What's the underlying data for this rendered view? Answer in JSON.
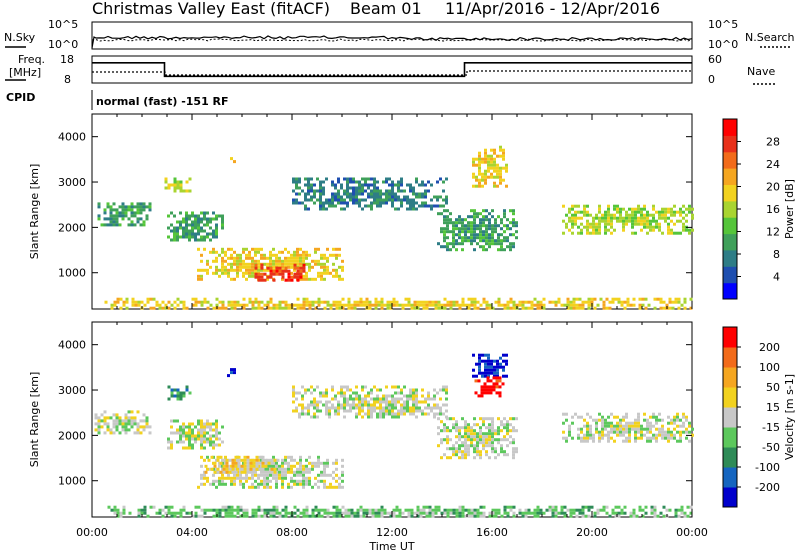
{
  "header": {
    "radar": "Christmas Valley East (fitACF)",
    "beam": "Beam 01",
    "date_range": "11/Apr/2016 - 12/Apr/2016"
  },
  "top_panels": {
    "nsky_label": "N.Sky",
    "nsearch_label": "N.Search",
    "noise_ticks": [
      "10^5",
      "10^0"
    ],
    "freq_label_1": "Freq.",
    "freq_label_2": "[MHz]",
    "freq_ticks": [
      "18",
      "8"
    ],
    "nave_label": "Nave",
    "nave_ticks": [
      "60",
      "0"
    ],
    "cpid_label": "CPID",
    "cpid_text": "normal (fast) -151 RF"
  },
  "chart_data": [
    {
      "type": "heatmap",
      "title": "",
      "xlabel": "Time UT",
      "ylabel": "Slant Range [km]",
      "xticks": [
        "00:00",
        "04:00",
        "08:00",
        "12:00",
        "16:00",
        "20:00",
        "00:00"
      ],
      "xlim": [
        0,
        24
      ],
      "ylim": [
        200,
        4500
      ],
      "yticks": [
        1000,
        2000,
        3000,
        4000
      ],
      "colorbar": {
        "label": "Power [dB]",
        "ticks": [
          4,
          8,
          12,
          16,
          20,
          24,
          28
        ],
        "colors": [
          "#0000ff",
          "#1f4fb0",
          "#2e7d86",
          "#3fa05a",
          "#55c53a",
          "#a9d430",
          "#f2d21f",
          "#f5a620",
          "#f26b1a",
          "#e8301a",
          "#ff0000"
        ]
      },
      "regions": [
        {
          "t0": 0.1,
          "t1": 2.3,
          "r0": 2050,
          "r1": 2550,
          "level": 3
        },
        {
          "t0": 2.9,
          "t1": 3.9,
          "r0": 2800,
          "r1": 3100,
          "level": 5
        },
        {
          "t0": 5.4,
          "t1": 5.7,
          "r0": 3300,
          "r1": 3550,
          "level": 6
        },
        {
          "t0": 3.0,
          "t1": 5.2,
          "r0": 1700,
          "r1": 2350,
          "level": 3
        },
        {
          "t0": 4.2,
          "t1": 10.0,
          "r0": 850,
          "r1": 1550,
          "level": 6
        },
        {
          "t0": 6.5,
          "t1": 8.5,
          "r0": 850,
          "r1": 1200,
          "level": 9
        },
        {
          "t0": 8.0,
          "t1": 14.2,
          "r0": 2400,
          "r1": 3100,
          "level": 2
        },
        {
          "t0": 13.8,
          "t1": 17.0,
          "r0": 1500,
          "r1": 2400,
          "level": 3
        },
        {
          "t0": 15.2,
          "t1": 16.6,
          "r0": 2900,
          "r1": 3800,
          "level": 6
        },
        {
          "t0": 18.8,
          "t1": 24.0,
          "r0": 1900,
          "r1": 2500,
          "level": 5
        },
        {
          "t0": 0.5,
          "t1": 24.0,
          "r0": 200,
          "r1": 450,
          "level": 6
        }
      ]
    },
    {
      "type": "heatmap",
      "title": "",
      "xlabel": "Time UT",
      "ylabel": "Slant Range [km]",
      "xticks": [
        "00:00",
        "04:00",
        "08:00",
        "12:00",
        "16:00",
        "20:00",
        "00:00"
      ],
      "xlim": [
        0,
        24
      ],
      "ylim": [
        200,
        4500
      ],
      "yticks": [
        1000,
        2000,
        3000,
        4000
      ],
      "colorbar": {
        "label": "Velocity [m s-1]",
        "ticks": [
          200,
          100,
          50,
          15,
          -15,
          -50,
          -100,
          -200
        ],
        "colors": [
          "#0000cc",
          "#1565c0",
          "#2e8b57",
          "#5cc85c",
          "#c8c8c8",
          "#f2d21f",
          "#f5a620",
          "#f26b1a",
          "#ff0000"
        ]
      },
      "regions": [
        {
          "t0": 0.1,
          "t1": 2.3,
          "r0": 2050,
          "r1": 2550,
          "level": 4
        },
        {
          "t0": 2.9,
          "t1": 3.9,
          "r0": 2800,
          "r1": 3100,
          "level": 2
        },
        {
          "t0": 5.4,
          "t1": 5.7,
          "r0": 3300,
          "r1": 3550,
          "level": 0
        },
        {
          "t0": 3.0,
          "t1": 5.2,
          "r0": 1700,
          "r1": 2350,
          "level": 4
        },
        {
          "t0": 4.2,
          "t1": 10.0,
          "r0": 850,
          "r1": 1550,
          "level": 4
        },
        {
          "t0": 4.5,
          "t1": 7.5,
          "r0": 1200,
          "r1": 1550,
          "level": 5
        },
        {
          "t0": 8.0,
          "t1": 14.2,
          "r0": 2400,
          "r1": 3100,
          "level": 4
        },
        {
          "t0": 13.8,
          "t1": 17.0,
          "r0": 1500,
          "r1": 2400,
          "level": 4
        },
        {
          "t0": 15.2,
          "t1": 16.6,
          "r0": 3300,
          "r1": 3800,
          "level": 0
        },
        {
          "t0": 15.3,
          "t1": 16.5,
          "r0": 2900,
          "r1": 3300,
          "level": 8
        },
        {
          "t0": 18.8,
          "t1": 24.0,
          "r0": 1900,
          "r1": 2500,
          "level": 4
        },
        {
          "t0": 0.5,
          "t1": 24.0,
          "r0": 200,
          "r1": 450,
          "level": 3
        }
      ]
    }
  ],
  "frequency_trace": [
    {
      "t": 0,
      "mhz": 15.5
    },
    {
      "t": 2.9,
      "mhz": 15.5
    },
    {
      "t": 2.9,
      "mhz": 10.5
    },
    {
      "t": 14.9,
      "mhz": 10.5
    },
    {
      "t": 14.9,
      "mhz": 15.5
    },
    {
      "t": 24,
      "mhz": 15.5
    }
  ]
}
